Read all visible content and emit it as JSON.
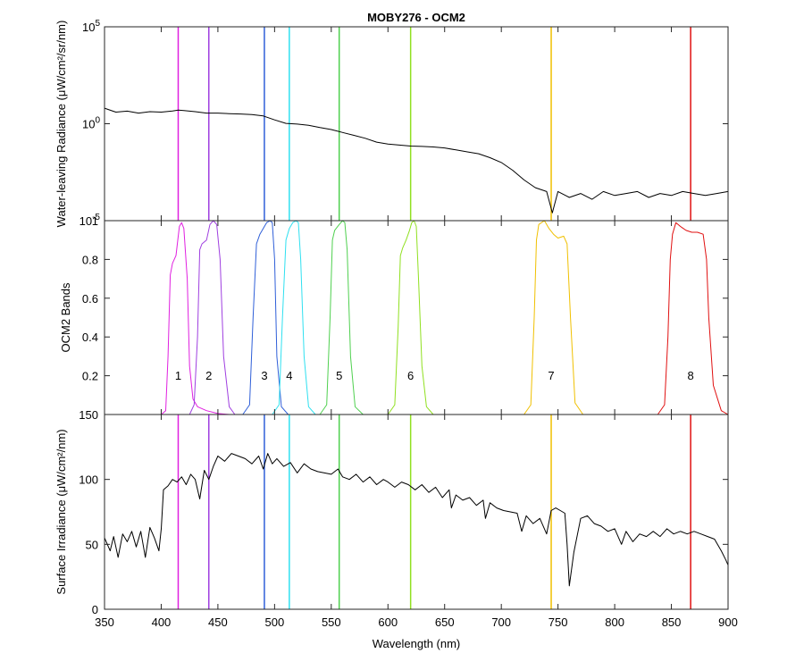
{
  "chart_data": {
    "title": "MOBY276 - OCM2",
    "xlabel": "Wavelength (nm)",
    "xlim": [
      350,
      900
    ],
    "xticks": [
      "350",
      "400",
      "450",
      "500",
      "550",
      "600",
      "650",
      "700",
      "750",
      "800",
      "850",
      "900"
    ],
    "band_lines": [
      {
        "band": "1",
        "center": 415,
        "color": "#e020e0"
      },
      {
        "band": "2",
        "center": 442,
        "color": "#9f3fe0"
      },
      {
        "band": "3",
        "center": 491,
        "color": "#2f5fd8"
      },
      {
        "band": "4",
        "center": 513,
        "color": "#2fe0f0"
      },
      {
        "band": "5",
        "center": 557,
        "color": "#4fd04f"
      },
      {
        "band": "6",
        "center": 620,
        "color": "#90e020"
      },
      {
        "band": "7",
        "center": 744,
        "color": "#f0c000"
      },
      {
        "band": "8",
        "center": 867,
        "color": "#e01010"
      }
    ],
    "panels": [
      {
        "type": "line",
        "ylabel": "Water-leaving Radiance (μW/cm²/sr/nm)",
        "yscale": "log",
        "ylim_exp": [
          -5,
          5
        ],
        "yticks": [
          {
            "base": "10",
            "exp": "5",
            "v": 5
          },
          {
            "base": "10",
            "exp": "0",
            "v": 0
          },
          {
            "base": "10",
            "exp": "-5",
            "v": -5
          }
        ],
        "series": [
          {
            "color": "#000000",
            "x": [
              350,
              360,
              370,
              380,
              390,
              400,
              410,
              415,
              420,
              430,
              440,
              450,
              460,
              470,
              480,
              490,
              500,
              510,
              520,
              530,
              540,
              550,
              560,
              570,
              580,
              590,
              600,
              610,
              620,
              630,
              640,
              650,
              660,
              670,
              680,
              690,
              700,
              710,
              720,
              730,
              740,
              745,
              750,
              760,
              770,
              780,
              790,
              800,
              810,
              820,
              830,
              840,
              850,
              860,
              870,
              880,
              890,
              900
            ],
            "y": [
              0.8,
              0.6,
              0.65,
              0.55,
              0.62,
              0.6,
              0.66,
              0.7,
              0.68,
              0.62,
              0.55,
              0.55,
              0.52,
              0.5,
              0.47,
              0.4,
              0.2,
              0.02,
              -0.02,
              -0.08,
              -0.2,
              -0.3,
              -0.45,
              -0.6,
              -0.75,
              -0.95,
              -1.05,
              -1.1,
              -1.15,
              -1.17,
              -1.2,
              -1.25,
              -1.35,
              -1.45,
              -1.55,
              -1.75,
              -2.0,
              -2.4,
              -2.9,
              -3.3,
              -3.5,
              -4.6,
              -3.5,
              -3.8,
              -3.6,
              -3.9,
              -3.5,
              -3.7,
              -3.6,
              -3.5,
              -3.8,
              -3.6,
              -3.7,
              -3.5,
              -3.6,
              -3.7,
              -3.6,
              -3.5
            ]
          }
        ]
      },
      {
        "type": "line",
        "ylabel": "OCM2 Bands",
        "yscale": "linear",
        "ylim": [
          0,
          1
        ],
        "yticks": [
          "0.2",
          "0.4",
          "0.6",
          "0.8",
          "1"
        ],
        "series": [
          {
            "name": "1",
            "color": "#e020e0",
            "x": [
              400,
              404,
              406,
              408,
              410,
              413,
              416,
              418,
              420,
              423,
              425,
              428,
              432,
              440,
              450,
              460
            ],
            "y": [
              0,
              0.02,
              0.3,
              0.72,
              0.78,
              0.82,
              0.97,
              0.99,
              0.96,
              0.7,
              0.25,
              0.08,
              0.04,
              0.02,
              0.005,
              0
            ]
          },
          {
            "name": "2",
            "color": "#9f3fe0",
            "x": [
              425,
              429,
              432,
              434,
              436,
              440,
              443,
              446,
              449,
              452,
              455,
              460,
              465
            ],
            "y": [
              0,
              0.05,
              0.4,
              0.85,
              0.88,
              0.9,
              0.98,
              1,
              0.98,
              0.8,
              0.3,
              0.04,
              0
            ]
          },
          {
            "name": "3",
            "color": "#2f5fd8",
            "x": [
              472,
              478,
              481,
              484,
              487,
              490,
              493,
              496,
              498,
              500,
              502,
              506,
              512
            ],
            "y": [
              0,
              0.05,
              0.5,
              0.88,
              0.93,
              0.96,
              0.99,
              1,
              0.99,
              0.8,
              0.3,
              0.04,
              0
            ]
          },
          {
            "name": "4",
            "color": "#2fe0f0",
            "x": [
              498,
              504,
              507,
              510,
              513,
              516,
              519,
              521,
              523,
              526,
              530,
              536
            ],
            "y": [
              0,
              0.05,
              0.5,
              0.9,
              0.96,
              0.99,
              1,
              0.99,
              0.8,
              0.3,
              0.04,
              0
            ]
          },
          {
            "name": "5",
            "color": "#4fd04f",
            "x": [
              540,
              546,
              549,
              551,
              553,
              557,
              560,
              562,
              564,
              567,
              571,
              578
            ],
            "y": [
              0,
              0.05,
              0.5,
              0.9,
              0.95,
              0.98,
              1,
              0.99,
              0.85,
              0.3,
              0.04,
              0
            ]
          },
          {
            "name": "6",
            "color": "#90e020",
            "x": [
              600,
              606,
              609,
              611,
              613,
              616,
              619,
              621,
              623,
              625,
              627,
              630,
              634,
              640
            ],
            "y": [
              0,
              0.05,
              0.45,
              0.82,
              0.86,
              0.9,
              0.95,
              0.99,
              1,
              0.97,
              0.7,
              0.25,
              0.04,
              0
            ]
          },
          {
            "name": "7",
            "color": "#f0c000",
            "x": [
              720,
              726,
              729,
              731,
              733,
              738,
              742,
              746,
              750,
              755,
              758,
              761,
              765,
              772
            ],
            "y": [
              0,
              0.05,
              0.5,
              0.9,
              0.98,
              1,
              0.96,
              0.93,
              0.91,
              0.92,
              0.88,
              0.5,
              0.06,
              0
            ]
          },
          {
            "name": "8",
            "color": "#e01010",
            "x": [
              838,
              844,
              847,
              849,
              851,
              854,
              858,
              863,
              868,
              873,
              878,
              881,
              883,
              887,
              894,
              900
            ],
            "y": [
              0,
              0.05,
              0.4,
              0.8,
              0.93,
              0.99,
              0.97,
              0.95,
              0.94,
              0.94,
              0.93,
              0.8,
              0.5,
              0.15,
              0.02,
              0
            ]
          }
        ]
      },
      {
        "type": "line",
        "ylabel": "Surface Irradiance (μW/cm²/nm)",
        "yscale": "linear",
        "ylim": [
          0,
          150
        ],
        "yticks": [
          "0",
          "50",
          "100",
          "150"
        ],
        "series": [
          {
            "color": "#000000",
            "x": [
              350,
              355,
              358,
              362,
              366,
              370,
              374,
              378,
              382,
              386,
              390,
              394,
              398,
              400,
              402,
              406,
              410,
              414,
              418,
              422,
              426,
              430,
              434,
              438,
              442,
              446,
              450,
              456,
              462,
              468,
              474,
              480,
              486,
              490,
              494,
              498,
              502,
              508,
              514,
              520,
              526,
              532,
              538,
              544,
              550,
              556,
              560,
              566,
              572,
              578,
              584,
              590,
              596,
              600,
              606,
              612,
              618,
              624,
              630,
              636,
              642,
              648,
              654,
              656,
              660,
              666,
              672,
              678,
              684,
              686,
              690,
              696,
              702,
              708,
              714,
              718,
              722,
              728,
              734,
              740,
              744,
              748,
              752,
              756,
              758,
              760,
              764,
              770,
              776,
              782,
              788,
              794,
              800,
              806,
              810,
              816,
              822,
              828,
              834,
              840,
              846,
              852,
              858,
              864,
              870,
              876,
              882,
              888,
              894,
              898,
              900
            ],
            "y": [
              55,
              45,
              56,
              40,
              58,
              52,
              60,
              48,
              60,
              40,
              63,
              55,
              45,
              62,
              92,
              95,
              100,
              98,
              102,
              96,
              104,
              100,
              85,
              107,
              100,
              110,
              118,
              114,
              120,
              118,
              116,
              112,
              118,
              108,
              120,
              112,
              116,
              110,
              113,
              105,
              112,
              108,
              106,
              105,
              104,
              108,
              102,
              100,
              104,
              98,
              102,
              96,
              100,
              98,
              94,
              98,
              96,
              92,
              96,
              90,
              94,
              86,
              92,
              78,
              88,
              84,
              86,
              80,
              84,
              70,
              82,
              78,
              76,
              75,
              74,
              60,
              72,
              66,
              70,
              58,
              76,
              78,
              76,
              74,
              50,
              18,
              44,
              70,
              72,
              66,
              64,
              60,
              62,
              50,
              60,
              52,
              58,
              56,
              60,
              56,
              62,
              58,
              60,
              58,
              60,
              58,
              56,
              54,
              45,
              38,
              34
            ]
          }
        ]
      }
    ]
  }
}
